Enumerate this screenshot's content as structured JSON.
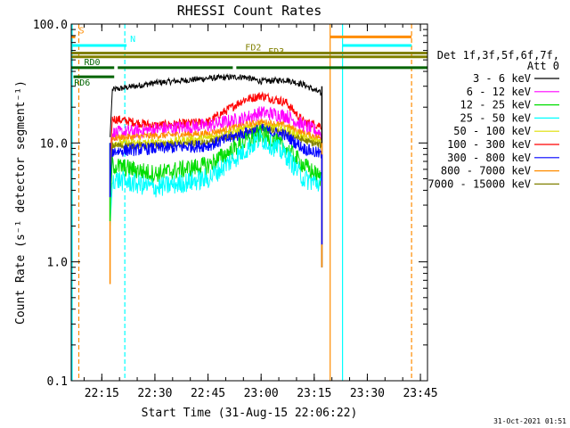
{
  "chart_data": {
    "type": "line",
    "title": "RHESSI Count Rates",
    "xlabel": "Start Time (31-Aug-15 22:06:22)",
    "ylabel": "Count Rate (s⁻¹ detector segment⁻¹)",
    "yscale": "log",
    "ylim": [
      0.1,
      100.0
    ],
    "xlim": [
      "22:06:22",
      "23:47:00"
    ],
    "xticks": [
      "22:15",
      "22:30",
      "22:45",
      "23:00",
      "23:15",
      "23:30",
      "23:45"
    ],
    "yticks": [
      "0.1",
      "1.0",
      "10.0",
      "100.0"
    ],
    "legend": {
      "position": "right",
      "header": [
        "Det 1f,3f,5f,6f,7f,",
        "Att 0"
      ],
      "entries": [
        {
          "label": "3 - 6 keV",
          "color": "#000000"
        },
        {
          "label": "6 - 12 keV",
          "color": "#ff00ff"
        },
        {
          "label": "12 - 25 keV",
          "color": "#00dd00"
        },
        {
          "label": "25 - 50 keV",
          "color": "#00ffff"
        },
        {
          "label": "50 - 100 keV",
          "color": "#dddd00"
        },
        {
          "label": "100 - 300 keV",
          "color": "#ff0000"
        },
        {
          "label": "300 - 800 keV",
          "color": "#0000ff"
        },
        {
          "label": "800 - 7000 keV",
          "color": "#ff8c00"
        },
        {
          "label": "7000 - 15000 keV",
          "color": "#808000"
        }
      ]
    },
    "timestamp": "31-Oct-2021 01:51",
    "series_profile_times": [
      "22:18",
      "22:30",
      "22:45",
      "22:55",
      "23:00",
      "23:07",
      "23:12",
      "23:17"
    ],
    "series": [
      {
        "name": "3 - 6 keV",
        "color": "#000000",
        "values": [
          28,
          32,
          35,
          36,
          33,
          34,
          31,
          26
        ]
      },
      {
        "name": "100 - 300 keV",
        "color": "#ff0000",
        "values": [
          16,
          14,
          15,
          23,
          25,
          22,
          15,
          14
        ]
      },
      {
        "name": "6 - 12 keV",
        "color": "#ff00ff",
        "values": [
          12,
          13,
          14,
          16,
          18,
          17,
          14,
          12
        ]
      },
      {
        "name": "800 - 7000 keV",
        "color": "#ff8c00",
        "values": [
          11,
          11.5,
          12,
          14,
          15,
          14,
          12,
          11
        ]
      },
      {
        "name": "50 - 100 keV",
        "color": "#dddd00",
        "values": [
          10,
          10,
          11,
          13,
          14,
          13,
          11,
          10
        ]
      },
      {
        "name": "7000 - 15000 keV",
        "color": "#808000",
        "values": [
          9.5,
          9.5,
          10,
          12,
          13,
          12,
          10.5,
          9.5
        ]
      },
      {
        "name": "300 - 800 keV",
        "color": "#0000ff",
        "values": [
          8.5,
          9,
          9.5,
          12,
          13,
          11.5,
          9,
          8
        ]
      },
      {
        "name": "12 - 25 keV",
        "color": "#00dd00",
        "values": [
          6.5,
          5.5,
          6.5,
          10,
          12,
          9,
          6.5,
          5
        ]
      },
      {
        "name": "25 - 50 keV",
        "color": "#00ffff",
        "values": [
          5,
          4.2,
          5,
          8.5,
          11,
          8,
          5,
          4.5
        ]
      }
    ],
    "flag_bars": [
      {
        "label": "S",
        "color": "#ff8c00",
        "y": 78,
        "segments": [
          [
            "22:06:22",
            "22:07:30"
          ],
          [
            "23:19:30",
            "23:42:30"
          ]
        ]
      },
      {
        "label": "N",
        "color": "#00ffff",
        "y": 66,
        "segments": [
          [
            "22:06:22",
            "22:22:00"
          ],
          [
            "23:23:00",
            "23:42:30"
          ]
        ]
      },
      {
        "label": "FD2",
        "color": "#808000",
        "y": 57,
        "segments": [
          [
            "22:06:22",
            "23:47:00"
          ]
        ]
      },
      {
        "label": "FD3",
        "color": "#808000",
        "y": 53,
        "segments": [
          [
            "22:06:22",
            "23:47:00"
          ]
        ]
      },
      {
        "label": "RD0",
        "color": "#006400",
        "y": 43,
        "segments": [
          [
            "22:06:22",
            "23:47:00"
          ]
        ]
      },
      {
        "label": "RD6",
        "color": "#006400",
        "y": 36,
        "segments": [
          [
            "22:07:00",
            "22:18:30"
          ]
        ]
      }
    ],
    "vertical_markers": [
      {
        "time": "22:06:22",
        "color": "#00ffff",
        "style": "solid"
      },
      {
        "time": "22:08:30",
        "color": "#ff8c00",
        "style": "dashed"
      },
      {
        "time": "22:21:30",
        "color": "#00ffff",
        "style": "dashed"
      },
      {
        "time": "23:19:30",
        "color": "#ff8c00",
        "style": "solid"
      },
      {
        "time": "23:23:00",
        "color": "#00ffff",
        "style": "solid"
      },
      {
        "time": "23:42:30",
        "color": "#ff8c00",
        "style": "dashed"
      }
    ]
  }
}
